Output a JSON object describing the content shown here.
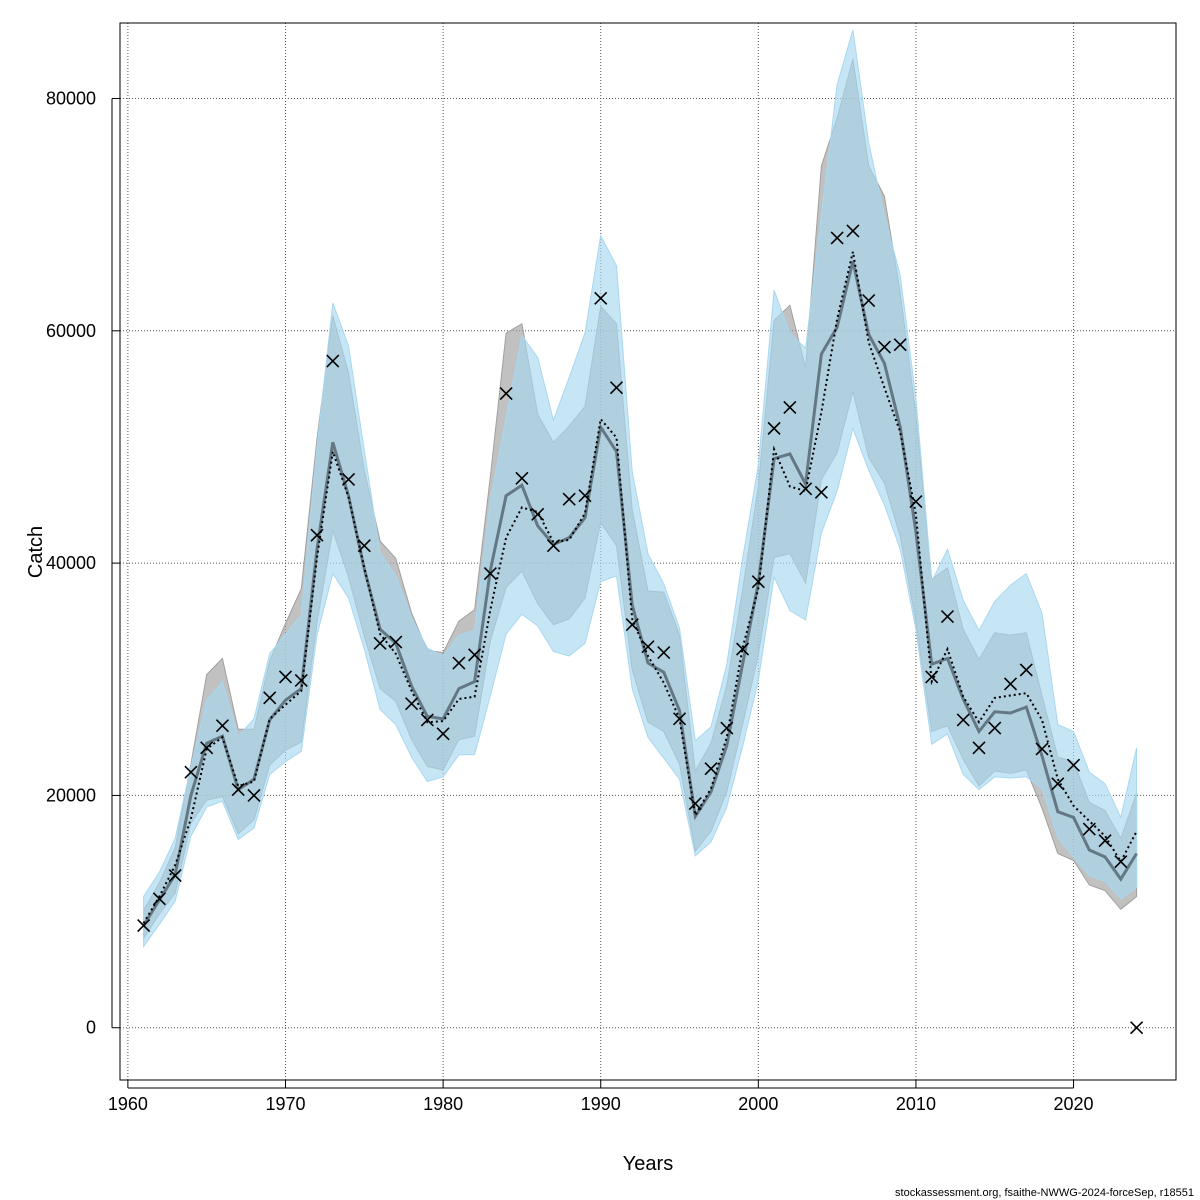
{
  "chart_data": {
    "type": "line",
    "xlabel": "Years",
    "ylabel": "Catch",
    "xlim": [
      1959.5,
      2026.5
    ],
    "ylim": [
      -4500,
      86500
    ],
    "xticks": [
      1960,
      1970,
      1980,
      1990,
      2000,
      2010,
      2020
    ],
    "yticks": [
      0,
      20000,
      40000,
      60000,
      80000
    ],
    "grid": true,
    "credit": "stockassessment.org, fsaithe-NWWG-2024-forceSep, r18551",
    "x": [
      1961,
      1962,
      1963,
      1964,
      1965,
      1966,
      1967,
      1968,
      1969,
      1970,
      1971,
      1972,
      1973,
      1974,
      1975,
      1976,
      1977,
      1978,
      1979,
      1980,
      1981,
      1982,
      1983,
      1984,
      1985,
      1986,
      1987,
      1988,
      1989,
      1990,
      1991,
      1992,
      1993,
      1994,
      1995,
      1996,
      1997,
      1998,
      1999,
      2000,
      2001,
      2002,
      2003,
      2004,
      2005,
      2006,
      2007,
      2008,
      2009,
      2010,
      2011,
      2012,
      2013,
      2014,
      2015,
      2016,
      2017,
      2018,
      2019,
      2020,
      2021,
      2022,
      2023,
      2024
    ],
    "series": [
      {
        "style": "solid-dark",
        "color": "#4a5b66",
        "values": [
          8800,
          11000,
          13200,
          20000,
          24500,
          25100,
          20500,
          21400,
          26500,
          28200,
          29200,
          41200,
          50400,
          45800,
          39500,
          34300,
          33100,
          29400,
          26800,
          26600,
          29200,
          29800,
          39400,
          45800,
          46700,
          43200,
          41600,
          42200,
          43900,
          51700,
          49600,
          36400,
          31400,
          30600,
          27300,
          18200,
          20300,
          24300,
          31300,
          38300,
          49000,
          49400,
          46800,
          58000,
          60300,
          66000,
          59700,
          57200,
          51700,
          42700,
          31300,
          31800,
          28300,
          25500,
          27200,
          27100,
          27600,
          23400,
          18600,
          18100,
          15300,
          14700,
          12800,
          15000
        ]
      },
      {
        "style": "dotted",
        "color": "#000000",
        "values": [
          9000,
          11300,
          14000,
          18000,
          24000,
          25000,
          20800,
          21200,
          26600,
          27800,
          29000,
          40500,
          49600,
          45700,
          39600,
          33900,
          32200,
          29000,
          26300,
          26400,
          28300,
          28500,
          36000,
          42200,
          44800,
          44400,
          41800,
          42000,
          44300,
          52400,
          50800,
          35200,
          32000,
          29700,
          26600,
          18300,
          20600,
          25000,
          32700,
          37800,
          49800,
          46600,
          46200,
          53000,
          61000,
          66800,
          59000,
          55100,
          51300,
          44200,
          29800,
          32600,
          28500,
          26300,
          28400,
          28600,
          28800,
          26500,
          21400,
          19100,
          17800,
          16500,
          14300,
          16900
        ]
      }
    ],
    "bands": [
      {
        "name": "band-grey",
        "color": "#a0a0a0",
        "lower": [
          7700,
          9800,
          11600,
          17600,
          19600,
          19900,
          16700,
          17900,
          22600,
          23900,
          24600,
          34900,
          42800,
          38800,
          33700,
          29200,
          28100,
          24800,
          22500,
          22200,
          24800,
          25100,
          33300,
          37900,
          39300,
          36500,
          34700,
          35200,
          37000,
          43500,
          41500,
          30800,
          26300,
          25500,
          22700,
          15200,
          16900,
          20300,
          26100,
          32100,
          40500,
          40800,
          38300,
          47200,
          49500,
          54800,
          49100,
          46900,
          42300,
          34900,
          25500,
          26000,
          23100,
          20800,
          22100,
          21900,
          22200,
          18900,
          15000,
          14400,
          12300,
          11800,
          10200,
          11300
        ],
        "upper": [
          10100,
          12500,
          15500,
          22700,
          30400,
          31800,
          25700,
          25700,
          31600,
          34800,
          37800,
          50700,
          61300,
          56400,
          48000,
          41900,
          40400,
          35700,
          32500,
          32300,
          35000,
          36000,
          47500,
          59800,
          60600,
          52800,
          50400,
          51800,
          53500,
          62100,
          60600,
          44600,
          37600,
          37500,
          33800,
          22100,
          24500,
          29500,
          37700,
          46600,
          60900,
          62200,
          56800,
          74200,
          78300,
          83400,
          74200,
          71600,
          63300,
          52800,
          38600,
          39600,
          34300,
          31700,
          34000,
          33800,
          34000,
          28600,
          23300,
          22900,
          19400,
          18700,
          16300,
          20200
        ]
      },
      {
        "name": "band-blue",
        "color": "#a8d8f0",
        "lower": [
          7000,
          8900,
          10900,
          16500,
          19000,
          19500,
          16200,
          17200,
          21800,
          22900,
          23800,
          33800,
          39100,
          37000,
          32600,
          27400,
          26100,
          23300,
          21200,
          21600,
          23500,
          23500,
          28600,
          33900,
          35600,
          34600,
          32400,
          32000,
          33100,
          38400,
          38900,
          29200,
          25000,
          23200,
          21400,
          14800,
          16000,
          19000,
          24200,
          29900,
          38800,
          35900,
          35100,
          42600,
          46200,
          51600,
          48000,
          45000,
          41200,
          34300,
          24400,
          25300,
          21800,
          20500,
          21600,
          21500,
          21600,
          20600,
          16400,
          14700,
          13100,
          12600,
          11100,
          12100
        ],
        "upper": [
          11300,
          13400,
          16300,
          22500,
          28200,
          29800,
          25100,
          26600,
          32200,
          33900,
          35500,
          50000,
          62400,
          58700,
          49700,
          40900,
          38900,
          35300,
          32700,
          32000,
          33800,
          34200,
          45400,
          52500,
          59600,
          57700,
          52300,
          56000,
          59800,
          68200,
          65600,
          47900,
          40800,
          38200,
          34400,
          24700,
          25900,
          31300,
          40400,
          48400,
          63500,
          59800,
          58500,
          69900,
          81200,
          85900,
          76200,
          69900,
          64800,
          54200,
          38400,
          41200,
          36800,
          34200,
          36700,
          38100,
          39100,
          35700,
          26100,
          25500,
          22000,
          21000,
          18100,
          24100
        ]
      }
    ],
    "observations": [
      8800,
      11100,
      13100,
      22000,
      24100,
      26000,
      20500,
      20000,
      28400,
      30200,
      29900,
      42400,
      57400,
      47200,
      41500,
      33100,
      33200,
      27900,
      26500,
      25300,
      31400,
      32100,
      39100,
      54600,
      47300,
      44200,
      41500,
      45500,
      45800,
      62800,
      55100,
      34700,
      32800,
      32300,
      26600,
      19300,
      22300,
      25800,
      32600,
      38400,
      51600,
      53400,
      46400,
      46100,
      68000,
      68600,
      62600,
      58600,
      58800,
      45300,
      30200,
      35400,
      26500,
      24100,
      25800,
      29600,
      30800,
      24000,
      21000,
      22600,
      17100,
      16100,
      14300,
      0
    ]
  }
}
